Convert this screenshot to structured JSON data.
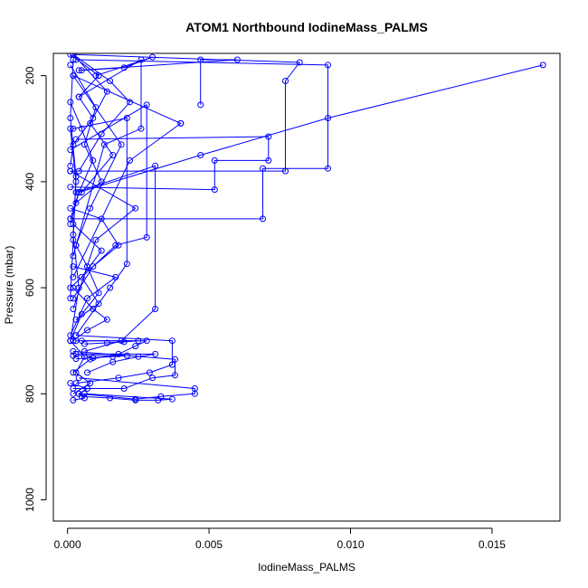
{
  "chart_data": {
    "type": "line",
    "title": "ATOM1 Northbound IodineMass_PALMS",
    "xlabel": "IodineMass_PALMS",
    "ylabel": "Pressure (mbar)",
    "xlim": [
      -0.0005,
      0.0174
    ],
    "ylim": [
      1040,
      158
    ],
    "y_reversed": true,
    "grid": false,
    "legend": "none",
    "x_ticks": [
      0.0,
      0.005,
      0.01,
      0.015
    ],
    "x_tick_labels": [
      "0.000",
      "0.005",
      "0.010",
      "0.015"
    ],
    "y_ticks": [
      200,
      400,
      600,
      800,
      1000
    ],
    "y_tick_labels": [
      "200",
      "400",
      "600",
      "800",
      "1000"
    ],
    "color": "#0000ff",
    "series": [
      {
        "x": [
          0.0168,
          0.0092,
          0.0047,
          0.0004,
          0.0001
        ],
        "y": [
          180,
          280,
          350,
          420,
          480
        ]
      },
      {
        "x": [
          0.0001,
          0.0069,
          0.0069,
          0.0092,
          0.0092,
          0.0003
        ],
        "y": [
          470,
          470,
          375,
          375,
          180,
          170
        ]
      },
      {
        "x": [
          0.0001,
          0.0052,
          0.0052,
          0.0071,
          0.0071,
          0.0003
        ],
        "y": [
          410,
          415,
          360,
          360,
          315,
          320
        ]
      },
      {
        "x": [
          0.0001,
          0.0077,
          0.0077,
          0.0082,
          0.0002
        ],
        "y": [
          380,
          380,
          210,
          175,
          160
        ]
      },
      {
        "x": [
          0.0047,
          0.0047,
          0.006,
          0.0004
        ],
        "y": [
          255,
          170,
          170,
          190
        ]
      },
      {
        "x": [
          0.0002,
          0.004,
          0.004,
          0.0022,
          0.0002
        ],
        "y": [
          200,
          290,
          290,
          360,
          580
        ]
      },
      {
        "x": [
          0.0003,
          0.0031,
          0.0031,
          0.0019,
          0.0006
        ],
        "y": [
          420,
          370,
          640,
          700,
          720
        ]
      },
      {
        "x": [
          0.0001,
          0.0028,
          0.0028,
          0.0017,
          0.0001
        ],
        "y": [
          340,
          255,
          505,
          520,
          600
        ]
      },
      {
        "x": [
          0.0002,
          0.0021,
          0.0021,
          0.0015,
          0.0003
        ],
        "y": [
          300,
          280,
          555,
          600,
          690
        ]
      },
      {
        "x": [
          0.0004,
          0.0026,
          0.0026,
          0.0013,
          0.0002
        ],
        "y": [
          240,
          170,
          300,
          330,
          540
        ]
      },
      {
        "x": [
          0.0003,
          0.0037,
          0.0037,
          0.0029,
          0.0018,
          0.0003
        ],
        "y": [
          690,
          700,
          745,
          760,
          770,
          780
        ]
      },
      {
        "x": [
          0.0004,
          0.0045,
          0.0045,
          0.0033,
          0.0024,
          0.0004
        ],
        "y": [
          770,
          790,
          800,
          805,
          810,
          800
        ]
      },
      {
        "x": [
          0.0002,
          0.0038,
          0.0038,
          0.003,
          0.002,
          0.0002
        ],
        "y": [
          720,
          735,
          765,
          770,
          790,
          790
        ]
      },
      {
        "x": [
          0.0005,
          0.0028,
          0.0024,
          0.0018,
          0.0008,
          0.0002
        ],
        "y": [
          700,
          700,
          710,
          725,
          735,
          760
        ]
      },
      {
        "x": [
          0.0003,
          0.0031,
          0.0025,
          0.0016,
          0.0007
        ],
        "y": [
          725,
          725,
          730,
          740,
          760
        ]
      },
      {
        "x": [
          0.0006,
          0.0037,
          0.0032,
          0.0024,
          0.0015,
          0.0005
        ],
        "y": [
          800,
          810,
          812,
          812,
          808,
          805
        ]
      },
      {
        "x": [
          0.0002,
          0.0015,
          0.0022,
          0.0012,
          0.0004
        ],
        "y": [
          160,
          210,
          250,
          310,
          380
        ]
      },
      {
        "x": [
          0.0001,
          0.0012,
          0.0018,
          0.0009,
          0.0002
        ],
        "y": [
          450,
          470,
          520,
          560,
          620
        ]
      },
      {
        "x": [
          0.0002,
          0.0009,
          0.0014,
          0.0007,
          0.0002
        ],
        "y": [
          600,
          640,
          660,
          680,
          700
        ]
      },
      {
        "x": [
          0.0001,
          0.001,
          0.0006,
          0.0012,
          0.0003
        ],
        "y": [
          180,
          260,
          330,
          400,
          440
        ]
      },
      {
        "x": [
          0.0003,
          0.0007,
          0.0011,
          0.0005,
          0.0001
        ],
        "y": [
          520,
          560,
          610,
          650,
          700
        ]
      },
      {
        "x": [
          0.0001,
          0.0006,
          0.0003,
          0.0008,
          0.0002
        ],
        "y": [
          700,
          730,
          760,
          780,
          800
        ]
      },
      {
        "x": [
          0.0002,
          0.0014,
          0.0008,
          0.0016,
          0.0005
        ],
        "y": [
          160,
          230,
          290,
          350,
          420
        ]
      },
      {
        "x": [
          0.0001,
          0.0005,
          0.0009,
          0.0004,
          0.0001
        ],
        "y": [
          250,
          300,
          360,
          420,
          470
        ]
      },
      {
        "x": [
          0.0002,
          0.0012,
          0.0005,
          0.0011,
          0.0003
        ],
        "y": [
          480,
          530,
          580,
          630,
          660
        ]
      },
      {
        "x": [
          0.0002,
          0.0019,
          0.0008,
          0.0003
        ],
        "y": [
          200,
          330,
          450,
          520
        ]
      },
      {
        "x": [
          0.0001,
          0.0024,
          0.001,
          0.0002
        ],
        "y": [
          380,
          450,
          510,
          640
        ]
      },
      {
        "x": [
          0.0002,
          0.0017,
          0.0007,
          0.0001
        ],
        "y": [
          560,
          580,
          620,
          690
        ]
      },
      {
        "x": [
          0.0001,
          0.0011,
          0.0004,
          0.0009,
          0.0002,
          0.0001
        ],
        "y": [
          160,
          200,
          240,
          280,
          330,
          370
        ]
      },
      {
        "x": [
          0.0003,
          0.0025,
          0.002,
          0.0014,
          0.0006
        ],
        "y": [
          700,
          700,
          702,
          704,
          706
        ]
      },
      {
        "x": [
          0.0002,
          0.0021,
          0.0016,
          0.0009,
          0.0003
        ],
        "y": [
          728,
          728,
          730,
          732,
          734
        ]
      },
      {
        "x": [
          0.0001,
          0.0007,
          0.0004,
          0.0006,
          0.0002
        ],
        "y": [
          780,
          790,
          800,
          808,
          812
        ]
      },
      {
        "x": [
          0.0005,
          0.002,
          0.003,
          0.001
        ],
        "y": [
          190,
          185,
          165,
          200
        ]
      },
      {
        "x": [
          0.0001,
          0.0003,
          0.0002,
          0.0004,
          0.0001
        ],
        "y": [
          300,
          400,
          500,
          600,
          700
        ]
      },
      {
        "x": [
          0.0002,
          0.0001,
          0.0003,
          0.0002,
          0.0001
        ],
        "y": [
          170,
          280,
          390,
          510,
          620
        ]
      }
    ]
  }
}
